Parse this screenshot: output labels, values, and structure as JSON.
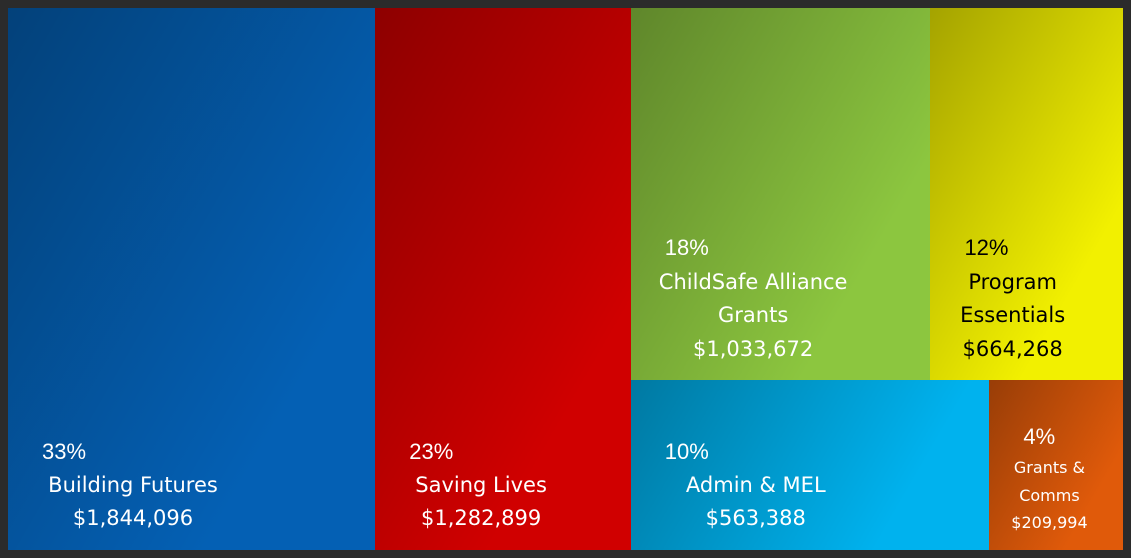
{
  "chart_data": {
    "type": "treemap",
    "categories": [
      "Building Futures",
      "Saving Lives",
      "ChildSafe Alliance Grants",
      "Program Essentials",
      "Admin & MEL",
      "Grants & Comms"
    ],
    "values": [
      1844096,
      1282899,
      1033672,
      664268,
      563388,
      209994
    ],
    "value_labels": [
      "$1,844,096",
      "$1,282,899",
      "$1,033,672",
      "$664,268",
      "$563,388",
      "$209,994"
    ],
    "percent_labels": [
      "33%",
      "23%",
      "18%",
      "12%",
      "10%",
      "4%"
    ],
    "colors": [
      "#0460b4",
      "#d00000",
      "#8cc63f",
      "#f2f000",
      "#00b2ee",
      "#e05a0a"
    ],
    "text_colors": [
      "#ffffff",
      "#ffffff",
      "#ffffff",
      "#000000",
      "#ffffff",
      "#ffffff"
    ]
  }
}
